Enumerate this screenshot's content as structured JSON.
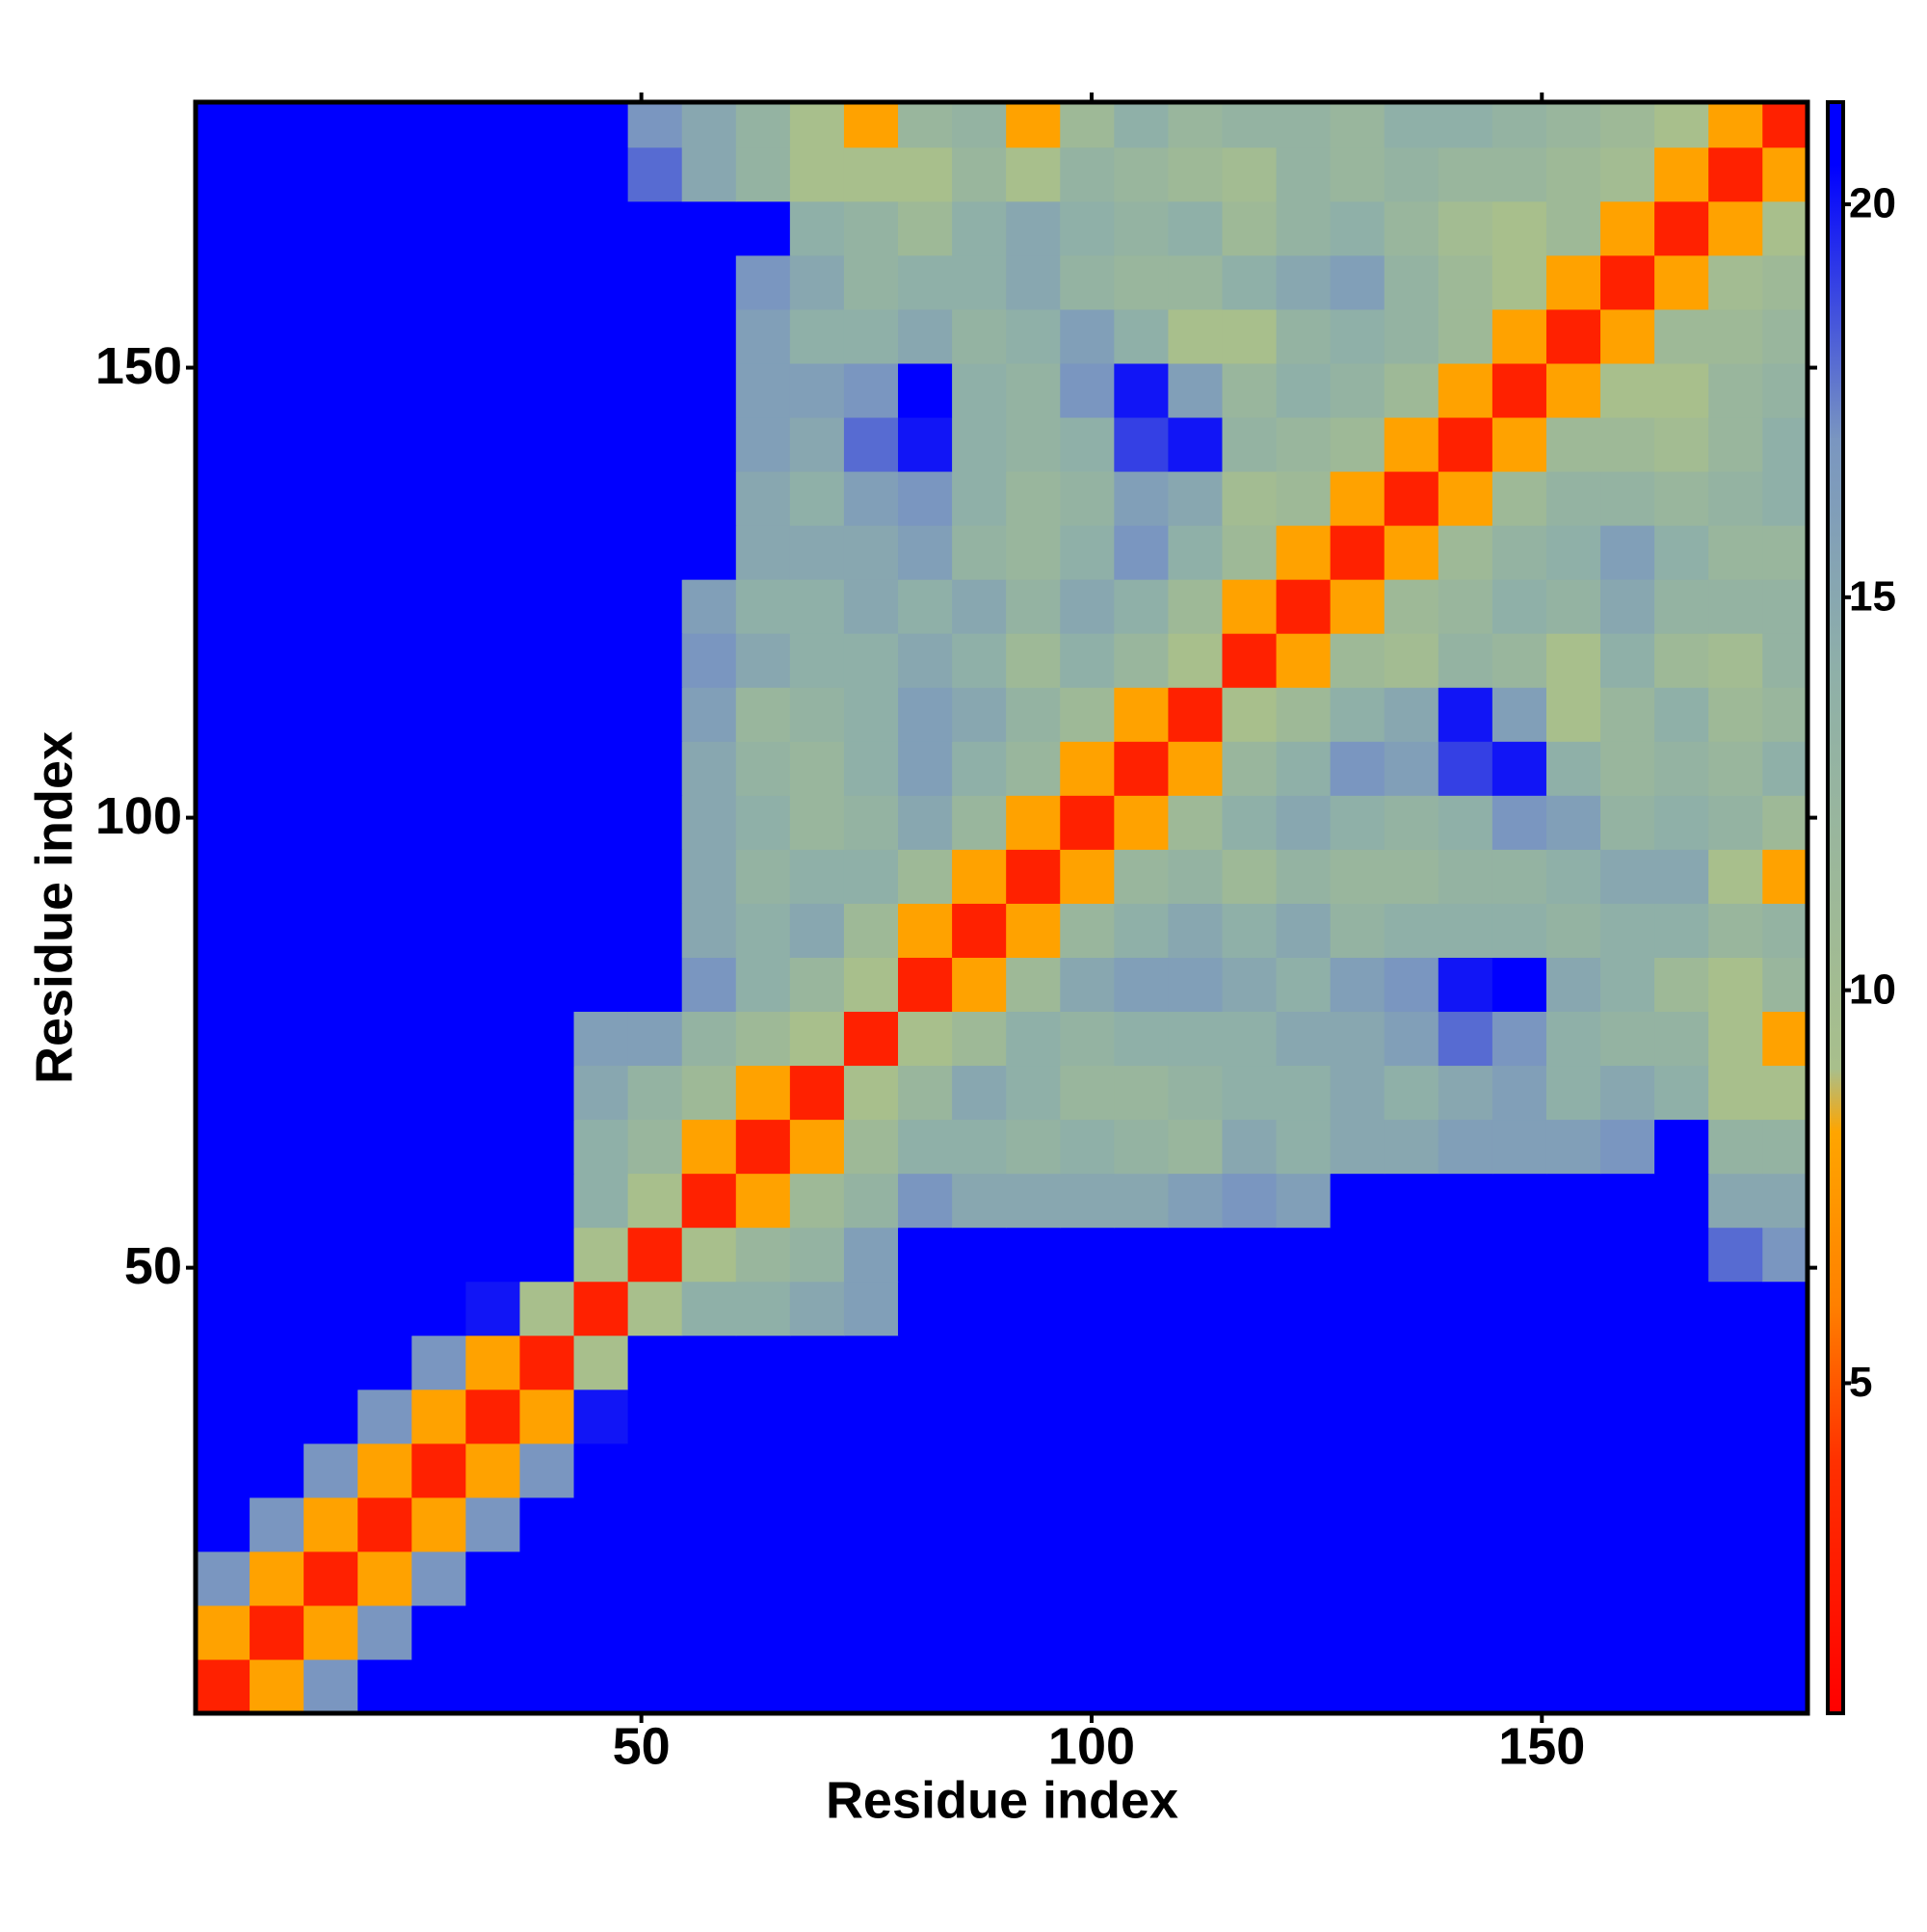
{
  "chart_data": {
    "type": "heatmap",
    "x_label": "Residue index",
    "y_label": "Residue index",
    "x": [
      3.5,
      9.5,
      15.5,
      21.5,
      27.5,
      33.5,
      39.5,
      45.5,
      51.5,
      57.5,
      63.5,
      69.5,
      75.5,
      81.5,
      87.5,
      93.5,
      99.5,
      105.5,
      111.5,
      117.5,
      123.5,
      129.5,
      135.5,
      141.5,
      147.5,
      153.5,
      159.5,
      165.5,
      171.5,
      177.5
    ],
    "y": [
      3.5,
      9.5,
      15.5,
      21.5,
      27.5,
      33.5,
      39.5,
      45.5,
      51.5,
      57.5,
      63.5,
      69.5,
      75.5,
      81.5,
      87.5,
      93.5,
      99.5,
      105.5,
      111.5,
      117.5,
      123.5,
      129.5,
      135.5,
      141.5,
      147.5,
      153.5,
      159.5,
      165.5,
      171.5,
      177.5
    ],
    "values": [
      [
        3,
        8,
        17,
        21,
        21,
        21,
        21,
        21,
        21,
        21,
        21,
        21,
        21,
        21,
        21,
        21,
        21,
        21,
        21,
        21,
        21,
        21,
        21,
        21,
        21,
        21,
        21,
        21,
        21,
        21
      ],
      [
        8,
        3,
        8,
        17,
        21,
        21,
        21,
        21,
        21,
        21,
        21,
        21,
        21,
        21,
        21,
        21,
        21,
        21,
        21,
        21,
        21,
        21,
        21,
        21,
        21,
        21,
        21,
        21,
        21,
        21
      ],
      [
        17,
        8,
        3,
        8,
        17,
        21,
        21,
        21,
        21,
        21,
        21,
        21,
        21,
        21,
        21,
        21,
        21,
        21,
        21,
        21,
        21,
        21,
        21,
        21,
        21,
        21,
        21,
        21,
        21,
        21
      ],
      [
        21,
        17,
        8,
        3,
        8,
        17,
        21,
        21,
        21,
        21,
        21,
        21,
        21,
        21,
        21,
        21,
        21,
        21,
        21,
        21,
        21,
        21,
        21,
        21,
        21,
        21,
        21,
        21,
        21,
        21
      ],
      [
        21,
        21,
        17,
        8,
        3,
        8,
        17,
        21,
        21,
        21,
        21,
        21,
        21,
        21,
        21,
        21,
        21,
        21,
        21,
        21,
        21,
        21,
        21,
        21,
        21,
        21,
        21,
        21,
        21,
        21
      ],
      [
        21,
        21,
        21,
        17,
        8,
        3,
        8,
        20,
        21,
        21,
        21,
        21,
        21,
        21,
        21,
        21,
        21,
        21,
        21,
        21,
        21,
        21,
        21,
        21,
        21,
        21,
        21,
        21,
        21,
        21
      ],
      [
        21,
        21,
        21,
        21,
        17,
        8,
        3,
        9,
        21,
        21,
        21,
        21,
        21,
        21,
        21,
        21,
        21,
        21,
        21,
        21,
        21,
        21,
        21,
        21,
        21,
        21,
        21,
        21,
        21,
        21
      ],
      [
        21,
        21,
        21,
        21,
        21,
        20,
        9,
        3,
        9,
        14,
        14,
        15,
        16,
        21,
        21,
        21,
        21,
        21,
        21,
        21,
        21,
        21,
        21,
        21,
        21,
        21,
        21,
        21,
        21,
        21
      ],
      [
        21,
        21,
        21,
        21,
        21,
        21,
        21,
        9,
        3,
        9,
        12,
        13,
        16,
        21,
        21,
        21,
        21,
        21,
        21,
        21,
        21,
        21,
        21,
        21,
        21,
        21,
        21,
        21,
        18,
        17
      ],
      [
        21,
        21,
        21,
        21,
        21,
        21,
        21,
        14,
        9,
        3,
        8,
        11,
        13,
        17,
        15,
        15,
        15,
        15,
        16,
        17,
        16,
        21,
        21,
        21,
        21,
        21,
        21,
        21,
        15,
        15
      ],
      [
        21,
        21,
        21,
        21,
        21,
        21,
        21,
        14,
        12,
        8,
        3,
        8,
        11,
        14,
        14,
        13,
        14,
        13,
        12,
        15,
        14,
        15,
        15,
        16,
        16,
        16,
        17,
        21,
        13,
        13
      ],
      [
        21,
        21,
        21,
        21,
        21,
        21,
        21,
        15,
        13,
        11,
        8,
        3,
        9,
        12,
        15,
        14,
        12,
        12,
        13,
        14,
        14,
        15,
        14,
        15,
        16,
        14,
        15,
        14,
        9,
        9
      ],
      [
        21,
        21,
        21,
        21,
        21,
        21,
        21,
        16,
        16,
        13,
        11,
        9,
        3,
        9,
        11,
        14,
        13,
        14,
        14,
        14,
        15,
        15,
        16,
        18,
        17,
        14,
        13,
        13,
        9,
        8
      ],
      [
        21,
        21,
        21,
        21,
        21,
        21,
        21,
        21,
        21,
        17,
        14,
        12,
        9,
        3,
        8,
        11,
        15,
        16,
        16,
        15,
        14,
        16,
        17,
        20,
        21,
        15,
        14,
        11,
        9,
        12
      ],
      [
        21,
        21,
        21,
        21,
        21,
        21,
        21,
        21,
        21,
        15,
        14,
        15,
        11,
        8,
        3,
        8,
        12,
        14,
        15,
        14,
        15,
        13,
        14,
        14,
        14,
        13,
        14,
        14,
        12,
        13
      ],
      [
        21,
        21,
        21,
        21,
        21,
        21,
        21,
        21,
        21,
        15,
        13,
        14,
        14,
        11,
        8,
        3,
        8,
        12,
        13,
        11,
        13,
        12,
        12,
        13,
        13,
        14,
        15,
        15,
        9,
        8
      ],
      [
        21,
        21,
        21,
        21,
        21,
        21,
        21,
        21,
        21,
        15,
        14,
        12,
        13,
        15,
        12,
        8,
        3,
        8,
        11,
        14,
        15,
        14,
        13,
        14,
        17,
        16,
        13,
        14,
        13,
        11
      ],
      [
        21,
        21,
        21,
        21,
        21,
        21,
        21,
        21,
        21,
        15,
        13,
        12,
        14,
        16,
        14,
        12,
        8,
        3,
        8,
        12,
        14,
        17,
        16,
        19,
        20,
        14,
        12,
        13,
        12,
        14
      ],
      [
        21,
        21,
        21,
        21,
        21,
        21,
        21,
        21,
        21,
        16,
        12,
        13,
        14,
        16,
        15,
        13,
        11,
        8,
        3,
        9,
        11,
        14,
        15,
        20,
        16,
        9,
        12,
        14,
        11,
        12
      ],
      [
        21,
        21,
        21,
        21,
        21,
        21,
        21,
        21,
        21,
        17,
        15,
        14,
        14,
        15,
        14,
        11,
        14,
        12,
        9,
        3,
        8,
        11,
        10,
        13,
        12,
        9,
        14,
        11,
        10,
        13
      ],
      [
        21,
        21,
        21,
        21,
        21,
        21,
        21,
        21,
        21,
        16,
        14,
        14,
        15,
        14,
        15,
        13,
        15,
        14,
        11,
        8,
        3,
        8,
        11,
        12,
        14,
        13,
        15,
        13,
        13,
        13
      ],
      [
        21,
        21,
        21,
        21,
        21,
        21,
        21,
        21,
        21,
        21,
        15,
        15,
        15,
        16,
        13,
        12,
        14,
        17,
        14,
        11,
        8,
        3,
        8,
        11,
        13,
        14,
        16,
        14,
        12,
        12
      ],
      [
        21,
        21,
        21,
        21,
        21,
        21,
        21,
        21,
        21,
        21,
        15,
        14,
        16,
        17,
        14,
        12,
        13,
        16,
        15,
        10,
        11,
        8,
        3,
        8,
        11,
        13,
        13,
        12,
        13,
        14
      ],
      [
        21,
        21,
        21,
        21,
        21,
        21,
        21,
        21,
        21,
        21,
        16,
        15,
        18,
        20,
        14,
        13,
        14,
        19,
        20,
        13,
        12,
        11,
        8,
        3,
        8,
        11,
        11,
        10,
        12,
        14
      ],
      [
        21,
        21,
        21,
        21,
        21,
        21,
        21,
        21,
        21,
        21,
        16,
        16,
        17,
        21,
        14,
        13,
        17,
        20,
        16,
        12,
        14,
        13,
        11,
        8,
        3,
        8,
        9,
        9,
        12,
        13
      ],
      [
        21,
        21,
        21,
        21,
        21,
        21,
        21,
        21,
        21,
        21,
        16,
        14,
        14,
        15,
        13,
        14,
        16,
        14,
        9,
        9,
        13,
        14,
        13,
        11,
        8,
        3,
        8,
        11,
        11,
        12
      ],
      [
        21,
        21,
        21,
        21,
        21,
        21,
        21,
        21,
        21,
        21,
        17,
        15,
        13,
        14,
        14,
        15,
        13,
        12,
        12,
        14,
        15,
        16,
        13,
        11,
        9,
        8,
        3,
        8,
        10,
        11
      ],
      [
        21,
        21,
        21,
        21,
        21,
        21,
        21,
        21,
        21,
        21,
        21,
        14,
        13,
        11,
        14,
        15,
        14,
        13,
        14,
        11,
        13,
        14,
        12,
        10,
        9,
        11,
        8,
        3,
        8,
        9
      ],
      [
        21,
        21,
        21,
        21,
        21,
        21,
        21,
        21,
        18,
        15,
        13,
        9,
        9,
        9,
        12,
        9,
        13,
        12,
        11,
        10,
        13,
        12,
        13,
        12,
        12,
        11,
        10,
        8,
        3,
        8
      ],
      [
        21,
        21,
        21,
        21,
        21,
        21,
        21,
        21,
        17,
        15,
        13,
        9,
        8,
        12,
        13,
        8,
        11,
        14,
        12,
        13,
        13,
        12,
        14,
        14,
        13,
        12,
        11,
        9,
        8,
        3
      ]
    ],
    "xlim": [
      0.5,
      179.5
    ],
    "ylim": [
      0.5,
      179.5
    ],
    "xticks": [
      50,
      100,
      150
    ],
    "yticks": [
      50,
      100,
      150
    ],
    "clim": [
      0.8,
      21.3
    ],
    "cticks": [
      5,
      10,
      15,
      20
    ],
    "colorscale": [
      [
        0.8,
        "#ff0000"
      ],
      [
        4,
        "#ff3000"
      ],
      [
        6,
        "#ff8000"
      ],
      [
        8.2,
        "#ffa500"
      ],
      [
        9,
        "#a8bf8c"
      ],
      [
        14,
        "#8fb0a8"
      ],
      [
        17,
        "#7a96c0"
      ],
      [
        20.5,
        "#0000ff"
      ],
      [
        21.3,
        "#0000ff"
      ]
    ]
  }
}
